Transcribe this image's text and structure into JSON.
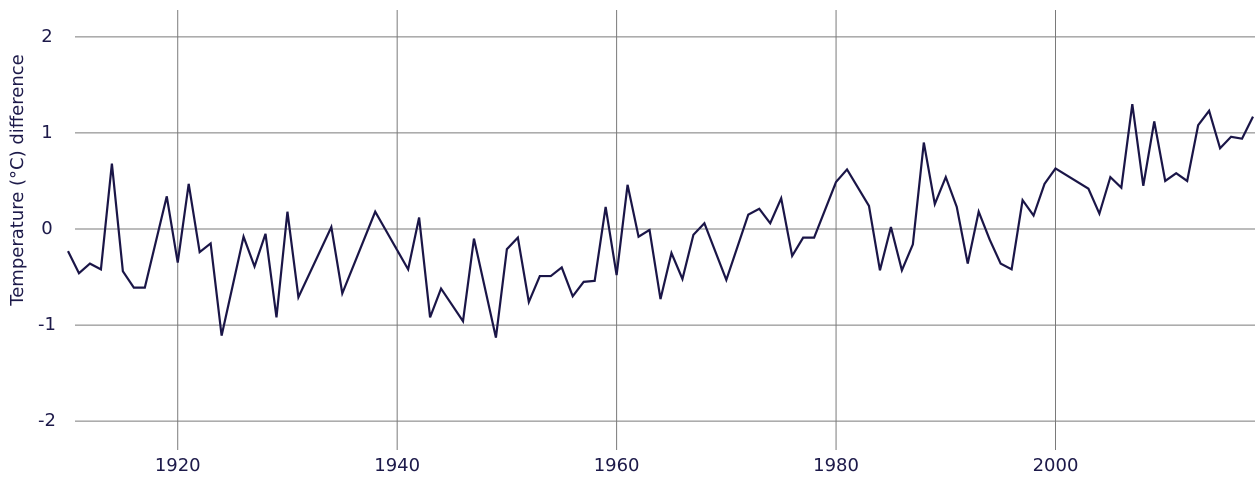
{
  "chart_data": {
    "type": "line",
    "y_label": "Temperature (°C) difference",
    "x": [
      1910,
      1911,
      1912,
      1913,
      1914,
      1915,
      1916,
      1917,
      1919,
      1920,
      1921,
      1922,
      1923,
      1924,
      1926,
      1927,
      1928,
      1929,
      1930,
      1931,
      1934,
      1935,
      1938,
      1941,
      1942,
      1943,
      1944,
      1946,
      1947,
      1949,
      1950,
      1951,
      1952,
      1953,
      1954,
      1955,
      1956,
      1957,
      1958,
      1959,
      1960,
      1961,
      1962,
      1963,
      1964,
      1965,
      1966,
      1967,
      1968,
      1970,
      1972,
      1973,
      1974,
      1975,
      1976,
      1977,
      1978,
      1980,
      1981,
      1983,
      1984,
      1985,
      1986,
      1987,
      1988,
      1989,
      1990,
      1991,
      1992,
      1993,
      1994,
      1995,
      1996,
      1997,
      1998,
      1999,
      2000,
      2003,
      2004,
      2005,
      2006,
      2007,
      2008,
      2009,
      2010,
      2011,
      2012,
      2013,
      2014,
      2015,
      2016,
      2017,
      2018
    ],
    "values": [
      -0.23,
      -0.46,
      -0.36,
      -0.42,
      0.68,
      -0.44,
      -0.61,
      -0.61,
      0.34,
      -0.35,
      0.47,
      -0.24,
      -0.15,
      -1.11,
      -0.08,
      -0.39,
      -0.05,
      -0.92,
      0.18,
      -0.71,
      0.02,
      -0.67,
      0.18,
      -0.42,
      0.12,
      -0.92,
      -0.62,
      -0.96,
      -0.1,
      -1.13,
      -0.21,
      -0.09,
      -0.76,
      -0.49,
      -0.49,
      -0.4,
      -0.7,
      -0.55,
      -0.54,
      0.23,
      -0.48,
      0.46,
      -0.08,
      -0.01,
      -0.73,
      -0.25,
      -0.52,
      -0.06,
      0.06,
      -0.53,
      0.15,
      0.21,
      0.06,
      0.32,
      -0.28,
      -0.09,
      -0.09,
      0.49,
      0.62,
      0.24,
      -0.43,
      0.02,
      -0.43,
      -0.16,
      0.9,
      0.26,
      0.54,
      0.23,
      -0.36,
      0.18,
      -0.11,
      -0.36,
      -0.42,
      0.3,
      0.14,
      0.47,
      0.63,
      0.42,
      0.16,
      0.54,
      0.43,
      1.3,
      0.45,
      1.12,
      0.5,
      0.58,
      0.5,
      1.08,
      1.23,
      0.84,
      0.96,
      0.94,
      1.17
    ],
    "color": "#1a1547",
    "xlim": [
      1910,
      2018
    ],
    "xticks": [
      1920,
      1940,
      1960,
      1980,
      2000
    ],
    "ylim": [
      -2.3,
      2.3
    ],
    "yticks": [
      -2,
      -1,
      0,
      1,
      2
    ],
    "grid": true
  }
}
